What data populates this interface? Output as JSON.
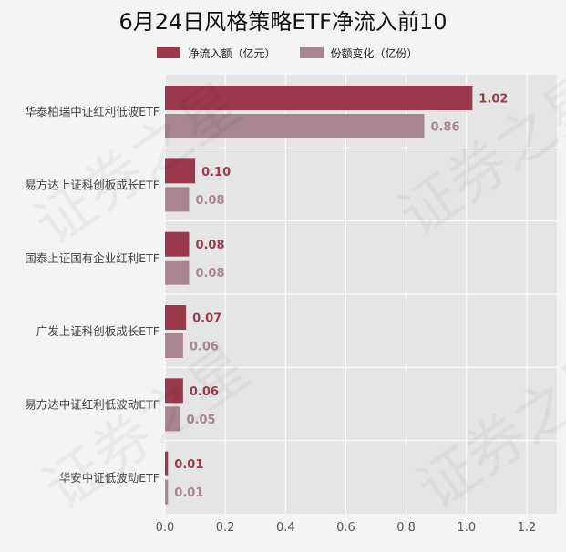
{
  "chart_data": {
    "type": "bar",
    "orientation": "horizontal",
    "title": "6月24日风格策略ETF净流入前10",
    "categories": [
      "华泰柏瑞中证红利低波ETF",
      "易方达上证科创板成长ETF",
      "国泰上证国有企业红利ETF",
      "广发上证科创板成长ETF",
      "易方达中证红利低波动ETF",
      "华安中证低波动ETF"
    ],
    "series": [
      {
        "name": "净流入额（亿元）",
        "color": "#9b3a4d",
        "values": [
          1.02,
          0.1,
          0.08,
          0.07,
          0.06,
          0.01
        ],
        "labels": [
          "1.02",
          "0.10",
          "0.08",
          "0.07",
          "0.06",
          "0.01"
        ]
      },
      {
        "name": "份额变化（亿份）",
        "color": "#a8868f",
        "values": [
          0.86,
          0.08,
          0.08,
          0.06,
          0.05,
          0.01
        ],
        "labels": [
          "0.86",
          "0.08",
          "0.08",
          "0.06",
          "0.05",
          "0.01"
        ]
      }
    ],
    "xlim": [
      0,
      1.3
    ],
    "xticks": [
      "0.0",
      "0.2",
      "0.4",
      "0.6",
      "0.8",
      "1.0",
      "1.2"
    ],
    "xtick_values": [
      0,
      0.2,
      0.4,
      0.6,
      0.8,
      1.0,
      1.2
    ],
    "grid": true,
    "legend_position": "top-center"
  },
  "watermark_text": "证券之星"
}
